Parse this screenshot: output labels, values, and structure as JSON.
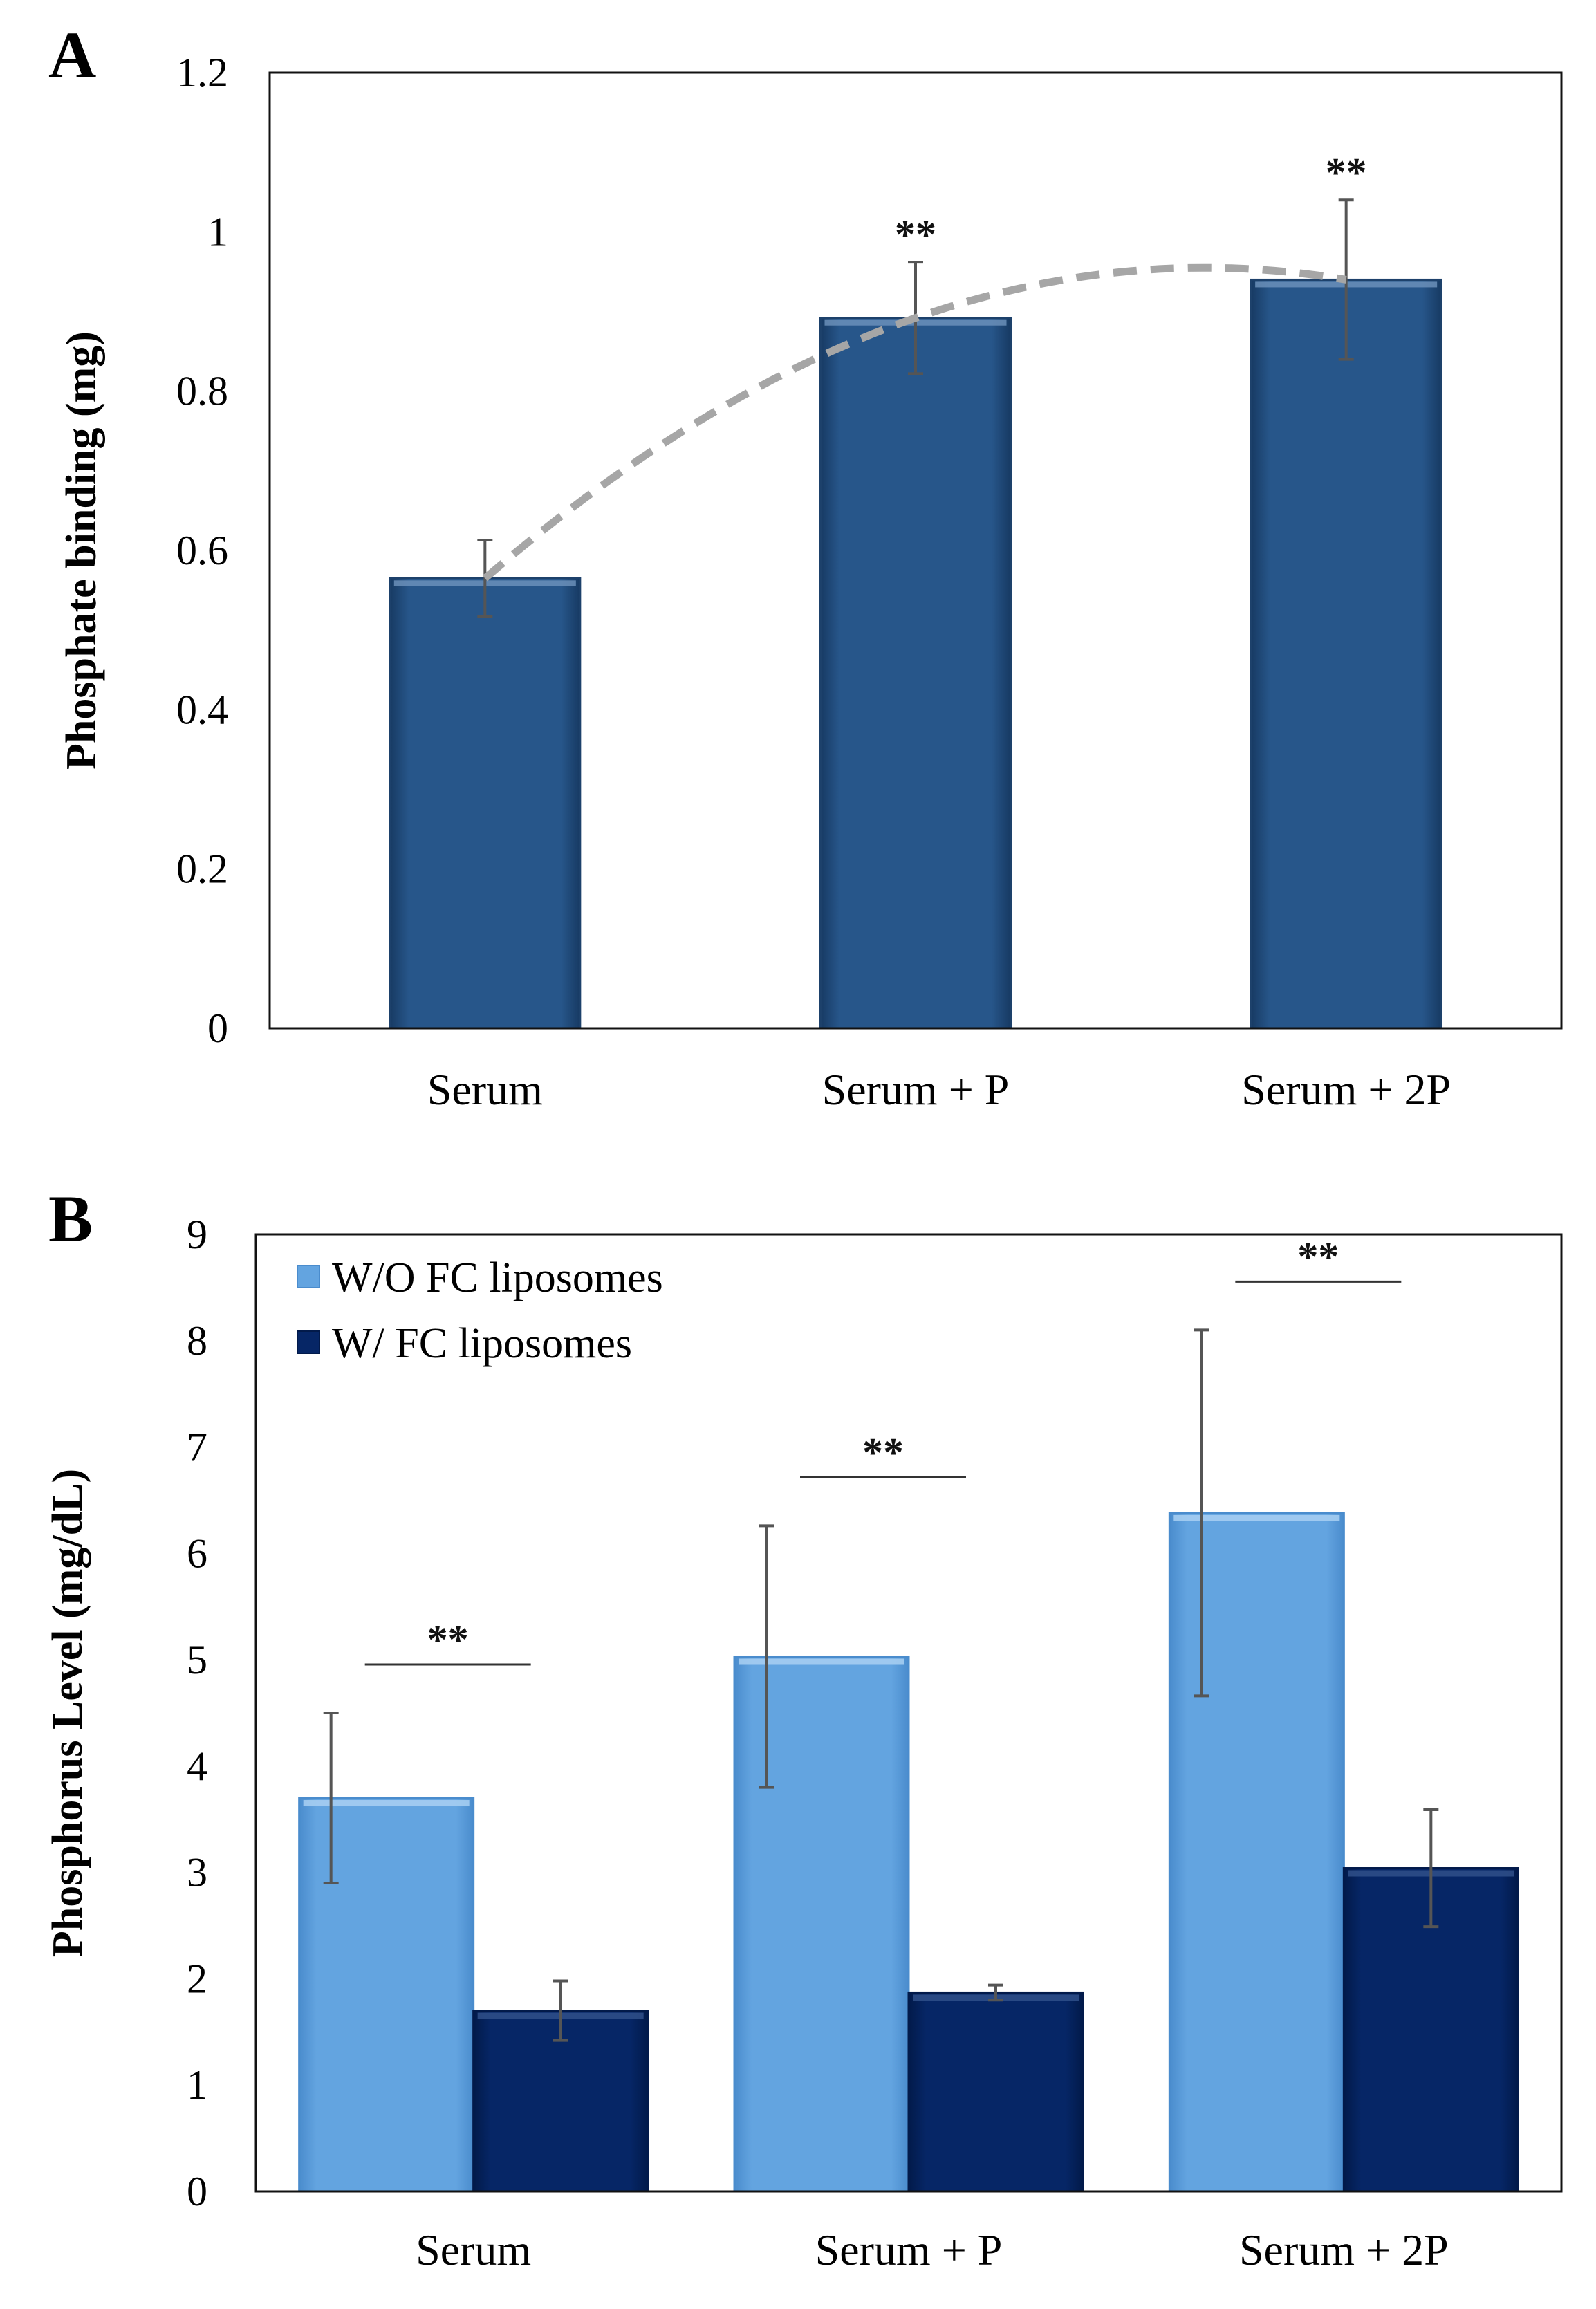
{
  "chart_data": [
    {
      "type": "bar",
      "panel_label": "A",
      "categories": [
        "Serum",
        "Serum + P",
        "Serum + 2P"
      ],
      "values": [
        0.565,
        0.892,
        0.94
      ],
      "errors": [
        0.048,
        0.07,
        0.1
      ],
      "significance": [
        "",
        "**",
        "**"
      ],
      "ylabel": "Phosphate binding (mg)",
      "ylim": [
        0,
        1.2
      ],
      "yticks": [
        "0",
        "0.2",
        "0.4",
        "0.6",
        "0.8",
        "1",
        "1.2"
      ],
      "bar_color": "#27568a",
      "trendline": {
        "style": "dashed",
        "color": "#a6a6a6",
        "fit": "polynomial"
      },
      "grid": false
    },
    {
      "type": "bar",
      "panel_label": "B",
      "categories": [
        "Serum",
        "Serum + P",
        "Serum + 2P"
      ],
      "series": [
        {
          "name": "W/O FC liposomes",
          "values": [
            3.7,
            5.03,
            6.38
          ],
          "errors": [
            0.8,
            1.23,
            1.72
          ],
          "color": "#63a4e0"
        },
        {
          "name": "W/ FC liposomes",
          "values": [
            1.7,
            1.87,
            3.04
          ],
          "errors": [
            0.28,
            0.07,
            0.55
          ],
          "color": "#062666"
        }
      ],
      "significance": [
        "**",
        "**",
        "**"
      ],
      "ylabel": "Phosphorus Level (mg/dL)",
      "ylim": [
        0,
        9
      ],
      "yticks": [
        "0",
        "1",
        "2",
        "3",
        "4",
        "5",
        "6",
        "7",
        "8",
        "9"
      ],
      "legend_position": "top-left",
      "grid": false
    }
  ]
}
